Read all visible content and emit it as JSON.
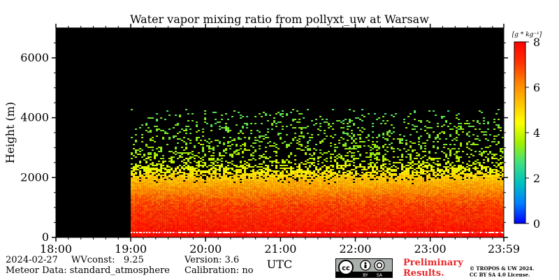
{
  "chart_data": {
    "type": "heatmap",
    "title": "Water vapor mixing ratio from pollyxt_uw at Warsaw",
    "xlabel": "UTC",
    "ylabel": "Height (m)",
    "x_ticks": [
      "18:00",
      "19:00",
      "20:00",
      "21:00",
      "22:00",
      "23:00",
      "23:59"
    ],
    "x_range_hours": [
      18.0,
      23.9833
    ],
    "y_ticks": [
      0,
      2000,
      4000,
      6000
    ],
    "ylim": [
      0,
      7000
    ],
    "data_start_hour": 19.0,
    "colorbar": {
      "unit": "[g * kg⁻¹]",
      "ticks": [
        0,
        2,
        4,
        6,
        8
      ],
      "range": [
        0,
        8
      ],
      "colormap": [
        "#0000ff",
        "#0080ff",
        "#00c0c0",
        "#40e080",
        "#a0f000",
        "#ffff00",
        "#ffc000",
        "#ff8000",
        "#ff3000",
        "#ff0000"
      ]
    },
    "profile": {
      "heights_m": [
        0,
        100,
        200,
        400,
        700,
        1000,
        1300,
        1600,
        1800,
        2000,
        2200,
        2500,
        2800,
        3200,
        3700,
        4300
      ],
      "mixing_ratio_g_per_kg": [
        7.8,
        7.9,
        7.6,
        7.4,
        7.2,
        7.0,
        6.6,
        6.0,
        5.6,
        5.2,
        4.6,
        4.0,
        3.6,
        3.4,
        3.2,
        3.0
      ]
    },
    "background_color": "#000000"
  },
  "footer": {
    "date_label": "2024-02-27",
    "wvconst_label": "WVconst:   9.25",
    "version_label": "Version: 3.6",
    "meteor_label": "Meteor Data: standard_atmosphere",
    "calibration_label": "Calibration: no",
    "preliminary_line1": "Preliminary",
    "preliminary_line2": "Results.",
    "copyright_line1": "© TROPOS & UW 2024.",
    "copyright_line2": "CC BY SA 4.0 License.",
    "cc_badge": {
      "main": "cc",
      "by": "BY",
      "sa": "SA"
    }
  },
  "colors": {
    "preliminary": "#e8282b"
  }
}
